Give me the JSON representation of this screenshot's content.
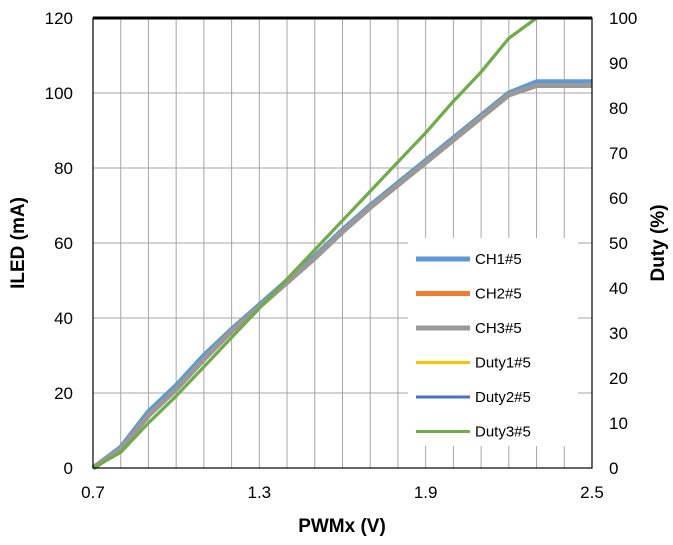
{
  "chart_data": {
    "type": "line",
    "xlabel": "PWMx (V)",
    "ylabel": "ILED (mA)",
    "y2label": "Duty (%)",
    "xlim": [
      0.7,
      2.5
    ],
    "ylim": [
      0,
      120
    ],
    "y2lim": [
      0,
      100
    ],
    "xticks": [
      "0.7",
      "1.3",
      "1.9",
      "2.5"
    ],
    "yticks": [
      "0",
      "20",
      "40",
      "60",
      "80",
      "100",
      "120"
    ],
    "y2ticks": [
      "0",
      "10",
      "20",
      "30",
      "40",
      "50",
      "60",
      "70",
      "80",
      "90",
      "100"
    ],
    "grid": true,
    "legend_position": "center-right",
    "series": [
      {
        "name": "CH1#5",
        "axis": "left",
        "color": "#5b9bd5",
        "x": [
          0.7,
          0.8,
          0.9,
          1.0,
          1.1,
          1.2,
          1.3,
          1.4,
          1.5,
          1.6,
          1.7,
          1.8,
          1.9,
          2.0,
          2.1,
          2.2,
          2.3,
          2.4,
          2.5
        ],
        "values": [
          0,
          5.5,
          15,
          22,
          30,
          37,
          43.5,
          50,
          56.5,
          63.5,
          70,
          76,
          82,
          88,
          94,
          100,
          103,
          103,
          103
        ]
      },
      {
        "name": "CH2#5",
        "axis": "left",
        "color": "#ed7d31",
        "x": [
          0.7,
          0.8,
          0.9,
          1.0,
          1.1,
          1.2,
          1.3,
          1.4,
          1.5,
          1.6,
          1.7,
          1.8,
          1.9,
          2.0,
          2.1,
          2.2,
          2.3,
          2.4,
          2.5
        ],
        "values": [
          0,
          5,
          14,
          21,
          29,
          36.5,
          43,
          49.5,
          56,
          63,
          69.5,
          75.5,
          81.5,
          87.5,
          93.5,
          99.5,
          102,
          102,
          102
        ]
      },
      {
        "name": "CH3#5",
        "axis": "left",
        "color": "#999999",
        "x": [
          0.7,
          0.8,
          0.9,
          1.0,
          1.1,
          1.2,
          1.3,
          1.4,
          1.5,
          1.6,
          1.7,
          1.8,
          1.9,
          2.0,
          2.1,
          2.2,
          2.3,
          2.4,
          2.5
        ],
        "values": [
          0,
          5,
          14,
          21,
          29,
          36.5,
          43,
          49.5,
          56,
          63,
          69.5,
          75.5,
          81.5,
          87.5,
          93.5,
          99.5,
          102,
          102,
          102
        ]
      },
      {
        "name": "Duty1#5",
        "axis": "right",
        "color": "#ffc000",
        "x": [
          0.7,
          0.8,
          0.9,
          1.0,
          1.1,
          1.2,
          1.3,
          1.4,
          1.5,
          1.6,
          1.7,
          1.8,
          1.9,
          2.0,
          2.1,
          2.2,
          2.3,
          2.4,
          2.5
        ],
        "values": [
          0,
          3.5,
          10,
          16,
          22.5,
          29,
          35.5,
          42,
          48.5,
          55,
          61.5,
          68,
          74.5,
          81.5,
          88,
          95.5,
          100,
          100,
          100
        ]
      },
      {
        "name": "Duty2#5",
        "axis": "right",
        "color": "#4472c4",
        "x": [
          0.7,
          0.8,
          0.9,
          1.0,
          1.1,
          1.2,
          1.3,
          1.4,
          1.5,
          1.6,
          1.7,
          1.8,
          1.9,
          2.0,
          2.1,
          2.2,
          2.3,
          2.4,
          2.5
        ],
        "values": [
          0,
          3.5,
          10,
          16,
          22.5,
          29,
          35.5,
          42,
          48.5,
          55,
          61.5,
          68,
          74.5,
          81.5,
          88,
          95.5,
          100,
          100,
          100
        ]
      },
      {
        "name": "Duty3#5",
        "axis": "right",
        "color": "#70ad47",
        "x": [
          0.7,
          0.8,
          0.9,
          1.0,
          1.1,
          1.2,
          1.3,
          1.4,
          1.5,
          1.6,
          1.7,
          1.8,
          1.9,
          2.0,
          2.1,
          2.2,
          2.3,
          2.4,
          2.5
        ],
        "values": [
          0,
          3.5,
          10,
          16,
          22.5,
          29,
          35.5,
          42,
          48.5,
          55,
          61.5,
          68,
          74.5,
          81.5,
          88,
          95.5,
          100,
          100,
          100
        ]
      }
    ]
  }
}
